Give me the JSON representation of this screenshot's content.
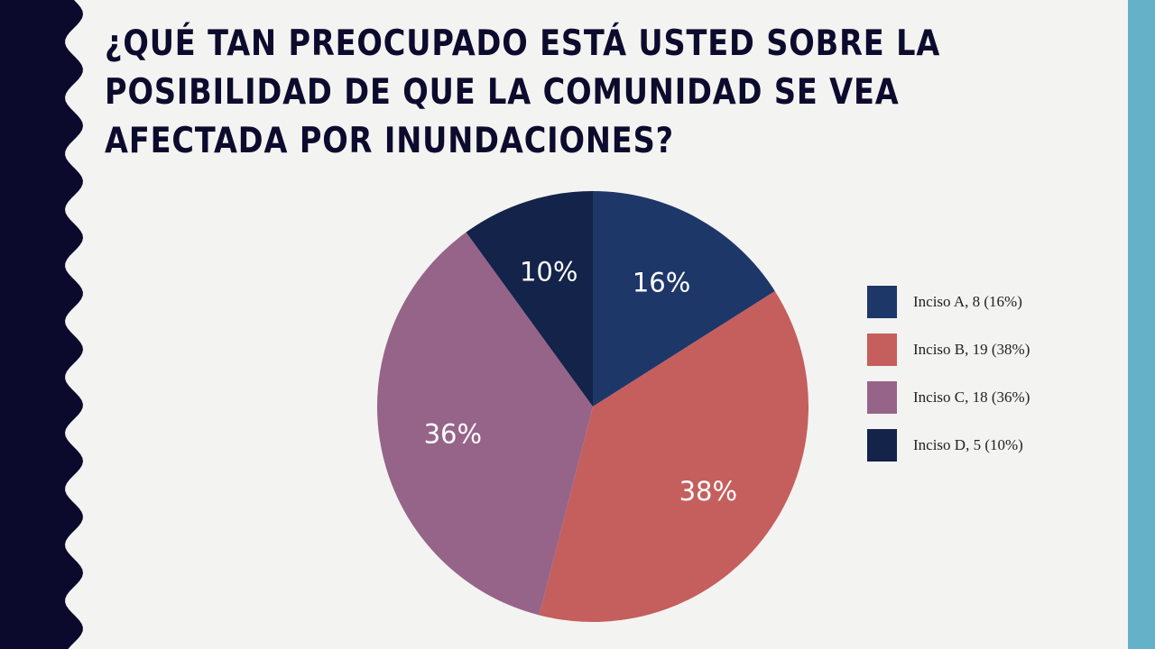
{
  "slide": {
    "title": "¿Qué tan preocupado está usted sobre la posibilidad de que la comunidad se vea afectada por inundaciones?",
    "colors": {
      "background": "#f3f3f1",
      "left_wave": "#0b0a2d",
      "right_bar": "#65b1c8",
      "title": "#0c0b2e"
    }
  },
  "chart_data": {
    "type": "pie",
    "title": "",
    "categories": [
      "Inciso A",
      "Inciso B",
      "Inciso C",
      "Inciso D"
    ],
    "values": [
      8,
      19,
      18,
      5
    ],
    "percent_labels": [
      "16%",
      "38%",
      "36%",
      "10%"
    ],
    "colors": [
      "#1e3769",
      "#c45f5d",
      "#966489",
      "#132349"
    ],
    "legend_position": "right",
    "legend_entries": [
      "Inciso A, 8 (16%)",
      "Inciso B, 19 (38%)",
      "Inciso C, 18 (36%)",
      "Inciso D, 5 (10%)"
    ]
  }
}
